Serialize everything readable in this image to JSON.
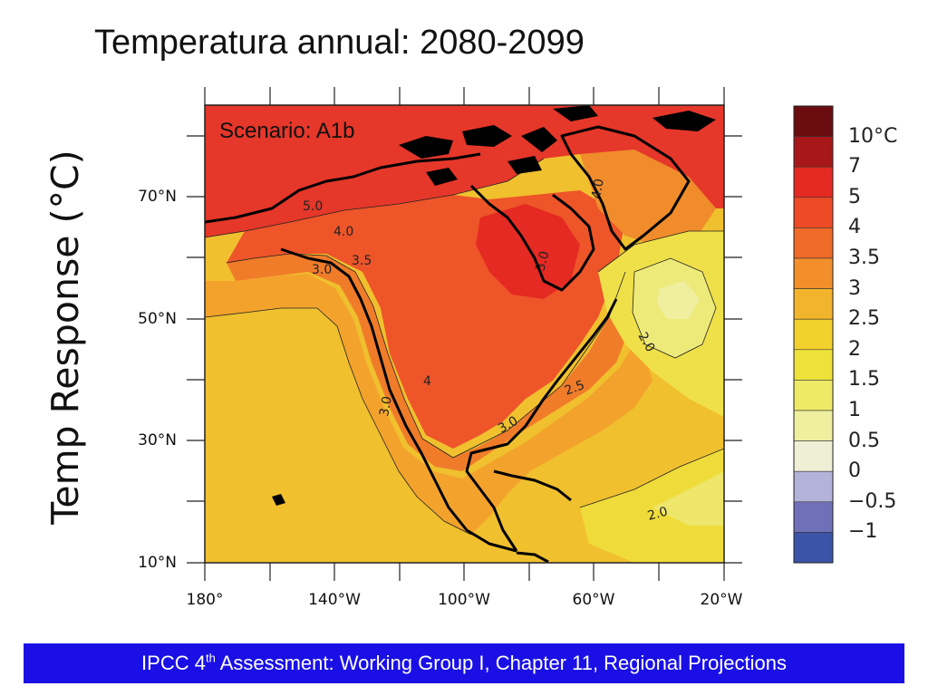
{
  "title": "Temperatura annual: 2080-2099",
  "y_axis_title": "Temp Response (°C)",
  "scenario_label": "Scenario: A1b",
  "lat_ticks": [
    "70°N",
    "50°N",
    "30°N",
    "10°N"
  ],
  "lon_ticks": [
    "180°",
    "140°W",
    "100°W",
    "60°W",
    "20°W"
  ],
  "contour_labels": [
    "5.0",
    "4.0",
    "3.5",
    "3.0",
    "4.0",
    "3.0",
    "4",
    "2.0",
    "2.5",
    "3.0",
    "3.0",
    "2.0"
  ],
  "legend": {
    "labels": [
      "10°C",
      "7",
      "5",
      "4",
      "3.5",
      "3",
      "2.5",
      "2",
      "1.5",
      "1",
      "0.5",
      "0",
      "−0.5",
      "−1"
    ],
    "colors": [
      "#6b0d10",
      "#a8181b",
      "#e42a22",
      "#ee4a26",
      "#f06a28",
      "#f28f2b",
      "#f3b42d",
      "#f2d12e",
      "#eee23a",
      "#eeea67",
      "#efefa0",
      "#efefd6",
      "#b3b3d9",
      "#6f70b7",
      "#3c54a8"
    ]
  },
  "footer": {
    "prefix": "IPCC 4",
    "sup": "th",
    "suffix": " Assessment: Working Group I, Chapter 11, Regional Projections"
  }
}
